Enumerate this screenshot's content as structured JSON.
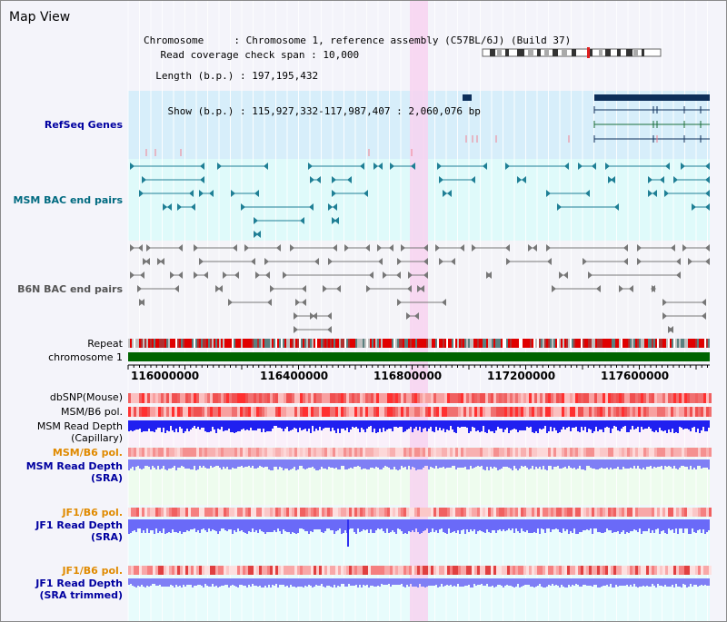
{
  "title": "Map View",
  "info": {
    "chromosome_key": "Chromosome",
    "chromosome_value": "Chromosome 1, reference assembly (C57BL/6J) (Build 37)",
    "length_key": "Length (b.p.)",
    "length_value": "197,195,432",
    "show_key": "Show (b.p.)",
    "show_value": "115,927,332-117,987,407 : 2,060,076 bp",
    "coverage_key": "Read coverage check span",
    "coverage_value": "10,000"
  },
  "tracks": {
    "refseq": "RefSeq Genes",
    "msm_bac": "MSM BAC end pairs",
    "b6n_bac": "B6N BAC end pairs",
    "repeat": "Repeat",
    "chromosome": "chromosome 1",
    "dbsnp": "dbSNP(Mouse)",
    "msm_b6_pol_1": "MSM/B6 pol.",
    "msm_depth_cap_1": "MSM Read Depth",
    "msm_depth_cap_2": "(Capillary)",
    "msm_b6_pol_2": "MSM/B6 pol.",
    "msm_depth_sra_1": "MSM Read Depth",
    "msm_depth_sra_2": "(SRA)",
    "jf1_b6_pol_1": "JF1/B6 pol.",
    "jf1_depth_sra_1": "JF1 Read Depth",
    "jf1_depth_sra_2": "(SRA)",
    "jf1_b6_pol_2": "JF1/B6 pol.",
    "jf1_depth_trim_1": "JF1 Read Depth",
    "jf1_depth_trim_2": "(SRA trimmed)"
  },
  "axis_ticks": [
    "116000000",
    "116400000",
    "116800000",
    "117200000",
    "117600000"
  ],
  "colors": {
    "highlight": "#f7d2f0",
    "refseq_band": "#d7eefa",
    "bac_band": "#dffafa",
    "gene_dark": "#0d2f5a",
    "msm_feature": "#1f7f95",
    "b6n_feature": "#777777",
    "chromosome_bar": "#006400",
    "depth_blue": "#2020f0",
    "depth_light": "#7f7ff5"
  }
}
